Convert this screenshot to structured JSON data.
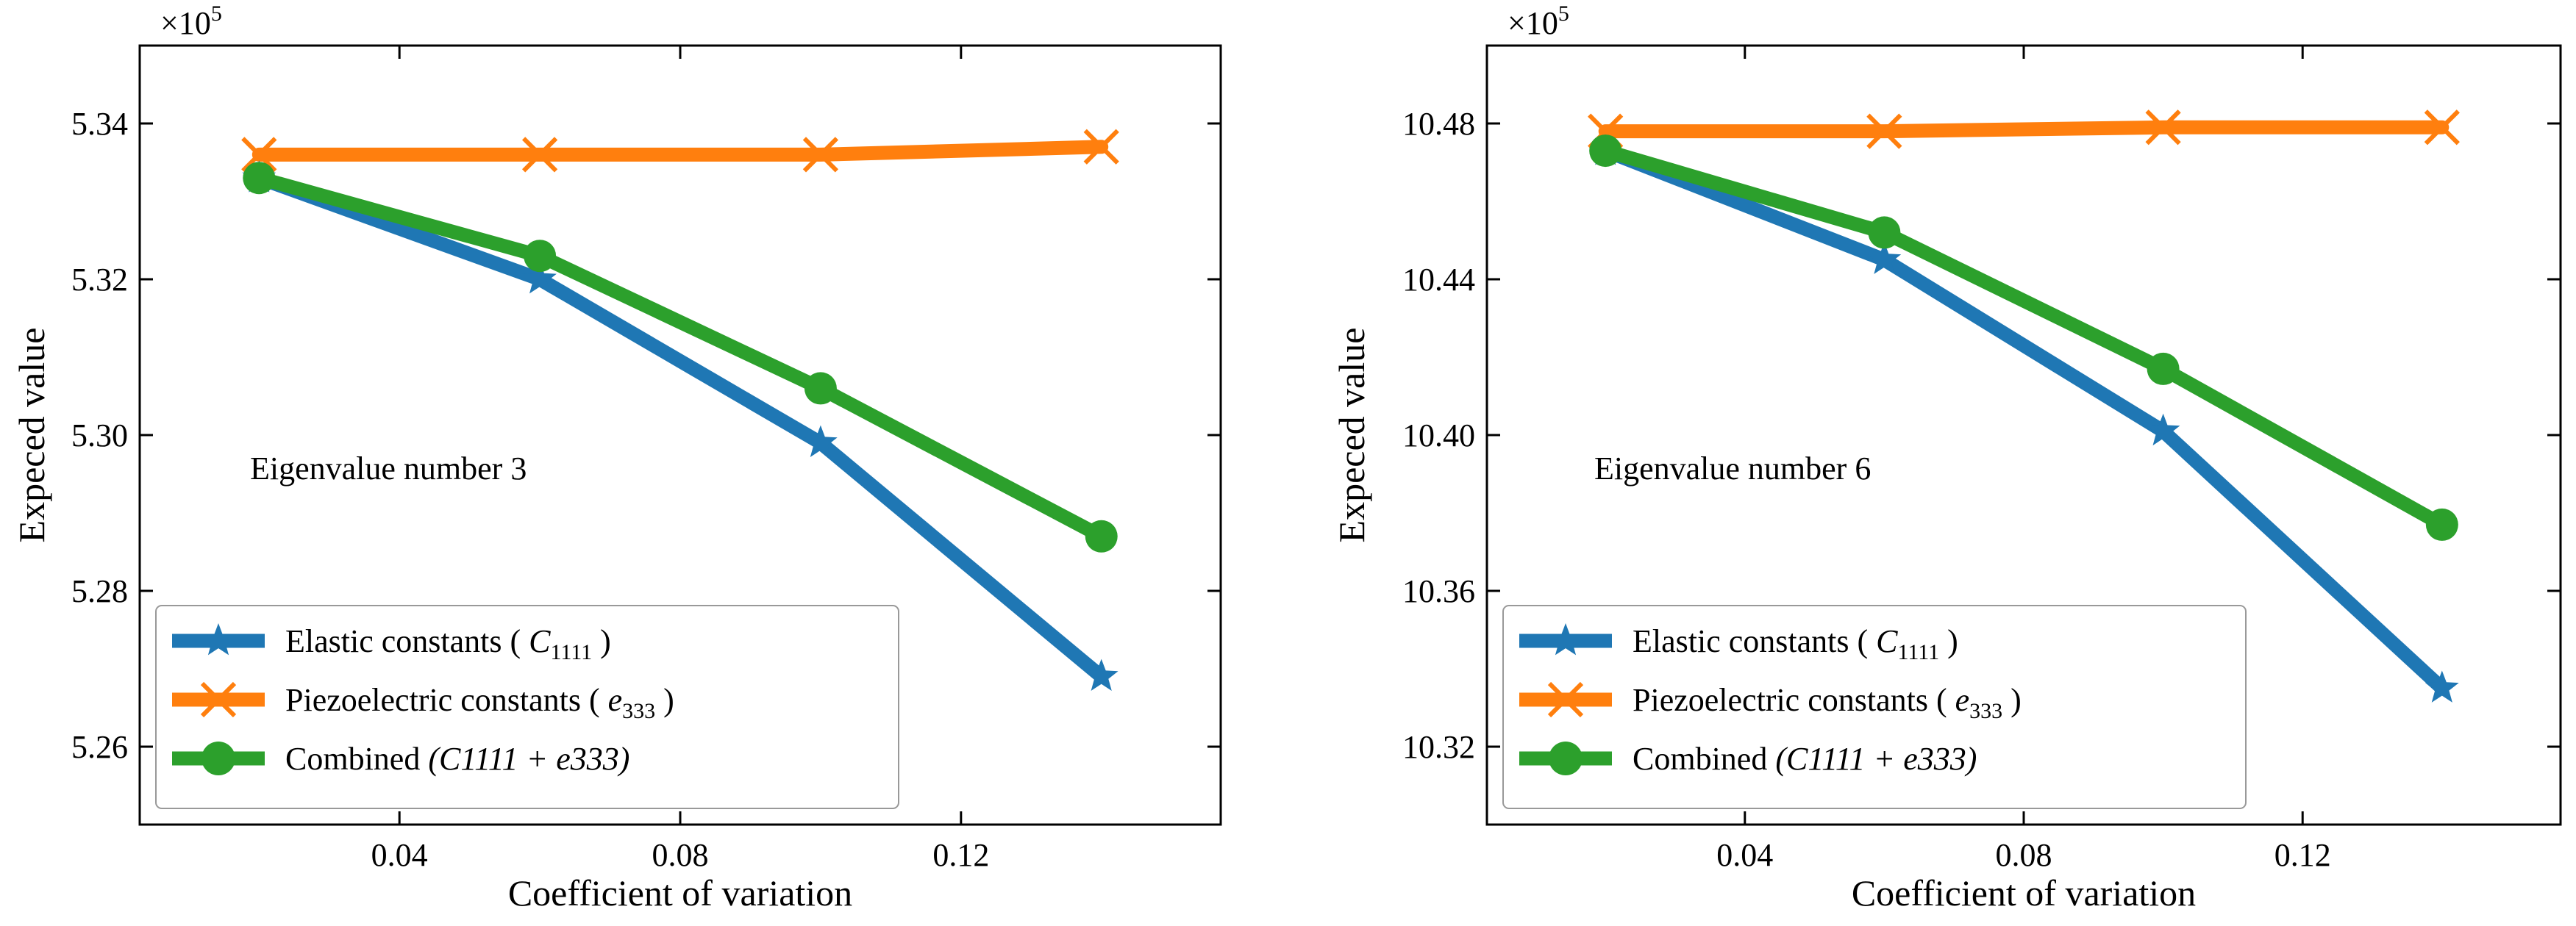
{
  "chart_data": [
    {
      "type": "line",
      "panel": "left",
      "multiplier_label": "×10",
      "multiplier_exponent": "5",
      "annotation": "Eigenvalue number 3",
      "xlabel": "Coefficient of variation",
      "ylabel": "Expeced value",
      "x": [
        0.02,
        0.06,
        0.1,
        0.14
      ],
      "xlim": [
        0.003,
        0.157
      ],
      "ylim": [
        5.25,
        5.35
      ],
      "xticks": [
        0.04,
        0.08,
        0.12
      ],
      "xtick_labels": [
        "0.04",
        "0.08",
        "0.12"
      ],
      "yticks": [
        5.26,
        5.28,
        5.3,
        5.32,
        5.34
      ],
      "ytick_labels": [
        "5.26",
        "5.28",
        "5.30",
        "5.32",
        "5.34"
      ],
      "legend_position": "lower-left",
      "series": [
        {
          "name": "Elastic constants",
          "name_suffix": ")",
          "name_prefix": "(",
          "math_symbol": "C",
          "math_sub": "1111",
          "color": "#1f77b4",
          "marker": "star",
          "values": [
            5.333,
            5.32,
            5.299,
            5.269
          ]
        },
        {
          "name": "Piezoelectric constants",
          "name_suffix": ")",
          "name_prefix": "(",
          "math_symbol": "e",
          "math_sub": "333",
          "color": "#ff7f0e",
          "marker": "x",
          "values": [
            5.336,
            5.336,
            5.336,
            5.337
          ]
        },
        {
          "name": "Combined",
          "math_combined": "(C1111 + e333)",
          "color": "#2ca02c",
          "marker": "circle",
          "values": [
            5.333,
            5.323,
            5.306,
            5.287
          ]
        }
      ]
    },
    {
      "type": "line",
      "panel": "right",
      "multiplier_label": "×10",
      "multiplier_exponent": "5",
      "annotation": "Eigenvalue number 6",
      "xlabel": "Coefficient of variation",
      "ylabel": "Expeced value",
      "x": [
        0.02,
        0.06,
        0.1,
        0.14
      ],
      "xlim": [
        0.003,
        0.157
      ],
      "ylim": [
        10.3,
        10.5
      ],
      "xticks": [
        0.04,
        0.08,
        0.12
      ],
      "xtick_labels": [
        "0.04",
        "0.08",
        "0.12"
      ],
      "yticks": [
        10.32,
        10.36,
        10.4,
        10.44,
        10.48
      ],
      "ytick_labels": [
        "10.32",
        "10.36",
        "10.40",
        "10.44",
        "10.48"
      ],
      "legend_position": "lower-left",
      "series": [
        {
          "name": "Elastic constants",
          "name_suffix": ")",
          "name_prefix": "(",
          "math_symbol": "C",
          "math_sub": "1111",
          "color": "#1f77b4",
          "marker": "star",
          "values": [
            10.473,
            10.445,
            10.401,
            10.335
          ]
        },
        {
          "name": "Piezoelectric constants",
          "name_suffix": ")",
          "name_prefix": "(",
          "math_symbol": "e",
          "math_sub": "333",
          "color": "#ff7f0e",
          "marker": "x",
          "values": [
            10.478,
            10.478,
            10.479,
            10.479
          ]
        },
        {
          "name": "Combined",
          "math_combined": "(C1111 + e333)",
          "color": "#2ca02c",
          "marker": "circle",
          "values": [
            10.473,
            10.452,
            10.417,
            10.377
          ]
        }
      ]
    }
  ]
}
